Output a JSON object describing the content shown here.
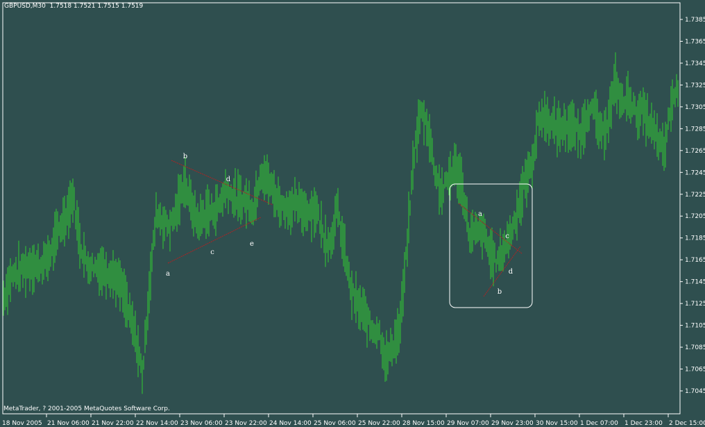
{
  "header": {
    "symbol": "GBPUSD,M30",
    "open": "1.7518",
    "high": "1.7521",
    "low": "1.7515",
    "close": "1.7519"
  },
  "copyright": "MetaTrader, ? 2001-2005 MetaQuotes Software Corp.",
  "colors": {
    "background": "#2f4f4f",
    "bars": "#32cd32",
    "axis": "#ffffff",
    "trendlines": "#b22222",
    "labels": "#ffffff"
  },
  "chart_data": {
    "type": "ohlc-bar",
    "symbol": "GBPUSD",
    "timeframe": "M30",
    "ylim": [
      1.7035,
      1.7395
    ],
    "y_ticks": [
      "1.7385",
      "1.7365",
      "1.7345",
      "1.7325",
      "1.7305",
      "1.7285",
      "1.7265",
      "1.7245",
      "1.7225",
      "1.7205",
      "1.7185",
      "1.7165",
      "1.7145",
      "1.7125",
      "1.7105",
      "1.7085",
      "1.7065",
      "1.7045"
    ],
    "x_ticks": [
      "18 Nov 2005",
      "21 Nov 06:00",
      "21 Nov 22:00",
      "22 Nov 14:00",
      "23 Nov 06:00",
      "23 Nov 22:00",
      "24 Nov 14:00",
      "25 Nov 06:00",
      "25 Nov 22:00",
      "28 Nov 15:00",
      "29 Nov 07:00",
      "29 Nov 23:00",
      "30 Nov 15:00",
      "1 Dec 07:00",
      "1 Dec 23:00",
      "2 Dec 15:00"
    ],
    "price_path_approx": [
      1.713,
      1.7149,
      1.7153,
      1.7157,
      1.7161,
      1.7159,
      1.7163,
      1.7174,
      1.7193,
      1.7206,
      1.7224,
      1.718,
      1.7161,
      1.7159,
      1.7157,
      1.7155,
      1.715,
      1.7139,
      1.7117,
      1.7094,
      1.706,
      1.7142,
      1.7209,
      1.7199,
      1.7196,
      1.7212,
      1.7238,
      1.7215,
      1.7199,
      1.7208,
      1.7209,
      1.7215,
      1.723,
      1.7223,
      1.7219,
      1.7219,
      1.7212,
      1.7247,
      1.7238,
      1.7225,
      1.7214,
      1.7213,
      1.7215,
      1.7211,
      1.721,
      1.7212,
      1.7187,
      1.718,
      1.7212,
      1.7174,
      1.7136,
      1.7123,
      1.7114,
      1.7101,
      1.7101,
      1.7072,
      1.7087,
      1.7101,
      1.7174,
      1.726,
      1.7301,
      1.7288,
      1.7248,
      1.7225,
      1.724,
      1.725,
      1.7232,
      1.7187,
      1.719,
      1.719,
      1.7171,
      1.7163,
      1.7176,
      1.719,
      1.7212,
      1.7236,
      1.7252,
      1.7295,
      1.7295,
      1.7288,
      1.7285,
      1.7288,
      1.7285,
      1.7279,
      1.7301,
      1.7301,
      1.7277,
      1.7295,
      1.7327,
      1.7307,
      1.7314,
      1.7298,
      1.7301,
      1.7288,
      1.7276,
      1.7263,
      1.7307,
      1.7323
    ],
    "annotations": {
      "triangle_1": {
        "labels": [
          "a",
          "b",
          "c",
          "d",
          "e"
        ]
      },
      "triangle_2": {
        "labels": [
          "a",
          "b",
          "c",
          "d"
        ]
      }
    },
    "grid": false
  }
}
